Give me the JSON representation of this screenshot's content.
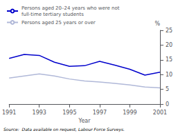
{
  "chart_data": {
    "type": "line",
    "xlabel": "Year",
    "ylabel": "%",
    "x": [
      1991,
      1992,
      1993,
      1994,
      1995,
      1996,
      1997,
      1998,
      1999,
      2000,
      2001
    ],
    "series": [
      {
        "name": "Persons aged 20–24 years who were not\nfull-time tertiary students",
        "color": "#0000cc",
        "values": [
          15.5,
          16.8,
          16.5,
          14.2,
          12.8,
          13.0,
          14.5,
          13.2,
          11.8,
          9.8,
          10.8
        ]
      },
      {
        "name": "Persons aged 25 years or over",
        "color": "#b0b8d8",
        "values": [
          8.8,
          9.5,
          10.2,
          9.5,
          8.5,
          7.8,
          7.5,
          7.0,
          6.5,
          5.8,
          5.5
        ]
      }
    ],
    "xlim": [
      1991,
      2001
    ],
    "xticks": [
      1991,
      1993,
      1995,
      1997,
      1999,
      2001
    ],
    "ylim": [
      0,
      25
    ],
    "yticks": [
      0,
      5,
      10,
      15,
      20,
      25
    ],
    "grid": false,
    "legend": "upper left",
    "annotations": [
      "Source:  Data available on request, Labour Force Surveys."
    ]
  }
}
